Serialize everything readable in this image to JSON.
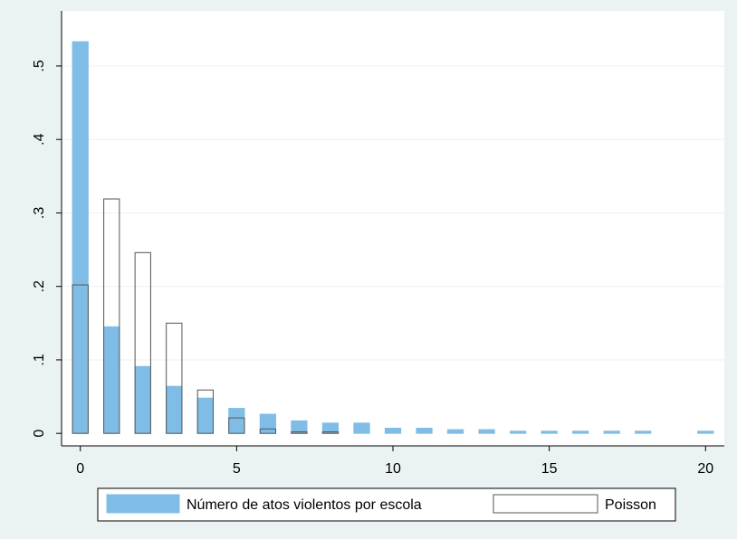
{
  "chart_data": {
    "type": "bar",
    "x": [
      0,
      1,
      2,
      3,
      4,
      5,
      6,
      7,
      8,
      9,
      10,
      11,
      12,
      13,
      14,
      15,
      16,
      17,
      18,
      19,
      20
    ],
    "series": [
      {
        "name": "Número de atos violentos por escola",
        "color": "#80bde6",
        "edgecolor": "#80bde6",
        "values": [
          0.533,
          0.145,
          0.091,
          0.064,
          0.048,
          0.034,
          0.026,
          0.017,
          0.014,
          0.014,
          0.007,
          0.007,
          0.005,
          0.005,
          0.003,
          0.003,
          0.003,
          0.003,
          0.003,
          0,
          0.003
        ]
      },
      {
        "name": "Poisson",
        "color": "none",
        "edgecolor": "#555555",
        "values": [
          0.202,
          0.319,
          0.246,
          0.15,
          0.059,
          0.021,
          0.006,
          0.002,
          0.002,
          0,
          0,
          0,
          0,
          0,
          0,
          0,
          0,
          0,
          0,
          0,
          0
        ]
      }
    ],
    "xlim": [
      -0.6,
      20.6
    ],
    "xticks": [
      0,
      5,
      10,
      15,
      20
    ],
    "ylim": [
      -0.017,
      0.575
    ],
    "yticks": [
      0,
      {
        "value": 0.1,
        "label": ".1"
      },
      {
        "value": 0.2,
        "label": ".2"
      },
      {
        "value": 0.3,
        "label": ".3"
      },
      {
        "value": 0.4,
        "label": ".4"
      },
      {
        "value": 0.5,
        "label": ".5"
      }
    ],
    "grid": true,
    "legend": "bottom"
  }
}
